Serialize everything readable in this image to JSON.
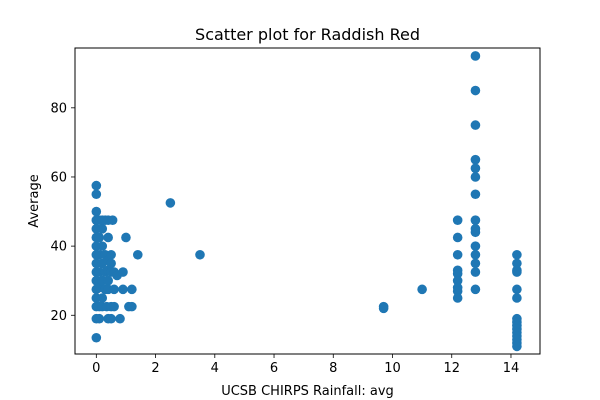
{
  "chart_data": {
    "type": "scatter",
    "title": "Scatter plot for Raddish Red",
    "xlabel": "UCSB CHIRPS Rainfall: avg",
    "ylabel": "Average",
    "xlim": [
      -0.72,
      14.98
    ],
    "ylim": [
      8.8,
      97.3
    ],
    "xticks": [
      0,
      2,
      4,
      6,
      8,
      10,
      12,
      14
    ],
    "yticks": [
      20,
      40,
      60,
      80
    ],
    "grid": false,
    "legend": "none",
    "marker_color": "#1f77b4",
    "series": [
      {
        "points": [
          {
            "x": 0,
            "y": 57.5
          },
          {
            "x": 0,
            "y": 55
          },
          {
            "x": 0,
            "y": 50
          },
          {
            "x": 0,
            "y": 47.5
          },
          {
            "x": 0,
            "y": 45
          },
          {
            "x": 0,
            "y": 42.5
          },
          {
            "x": 0,
            "y": 40
          },
          {
            "x": 0,
            "y": 37.5
          },
          {
            "x": 0,
            "y": 35
          },
          {
            "x": 0,
            "y": 32.5
          },
          {
            "x": 0,
            "y": 30
          },
          {
            "x": 0,
            "y": 27.5
          },
          {
            "x": 0,
            "y": 25
          },
          {
            "x": 0,
            "y": 22.5
          },
          {
            "x": 0,
            "y": 19
          },
          {
            "x": 0,
            "y": 13.5
          },
          {
            "x": 0.1,
            "y": 47.5
          },
          {
            "x": 0.1,
            "y": 42.5
          },
          {
            "x": 0.1,
            "y": 37.5
          },
          {
            "x": 0.1,
            "y": 32.5
          },
          {
            "x": 0.1,
            "y": 28
          },
          {
            "x": 0.1,
            "y": 22.5
          },
          {
            "x": 0.1,
            "y": 19
          },
          {
            "x": 0.2,
            "y": 47.5
          },
          {
            "x": 0.2,
            "y": 45
          },
          {
            "x": 0.2,
            "y": 40
          },
          {
            "x": 0.2,
            "y": 35
          },
          {
            "x": 0.2,
            "y": 30
          },
          {
            "x": 0.2,
            "y": 25
          },
          {
            "x": 0.2,
            "y": 22.5
          },
          {
            "x": 0.3,
            "y": 47.5
          },
          {
            "x": 0.3,
            "y": 37.5
          },
          {
            "x": 0.3,
            "y": 32.5
          },
          {
            "x": 0.3,
            "y": 27.5
          },
          {
            "x": 0.35,
            "y": 22.5
          },
          {
            "x": 0.4,
            "y": 47.5
          },
          {
            "x": 0.4,
            "y": 42.5
          },
          {
            "x": 0.4,
            "y": 36
          },
          {
            "x": 0.4,
            "y": 33
          },
          {
            "x": 0.4,
            "y": 30
          },
          {
            "x": 0.4,
            "y": 27.5
          },
          {
            "x": 0.4,
            "y": 19
          },
          {
            "x": 0.5,
            "y": 37.5
          },
          {
            "x": 0.5,
            "y": 35
          },
          {
            "x": 0.5,
            "y": 32.5
          },
          {
            "x": 0.5,
            "y": 22.5
          },
          {
            "x": 0.5,
            "y": 19
          },
          {
            "x": 0.55,
            "y": 47.5
          },
          {
            "x": 0.6,
            "y": 32.5
          },
          {
            "x": 0.6,
            "y": 27.5
          },
          {
            "x": 0.6,
            "y": 22.5
          },
          {
            "x": 0.7,
            "y": 31.5
          },
          {
            "x": 0.8,
            "y": 19
          },
          {
            "x": 0.9,
            "y": 32.5
          },
          {
            "x": 0.9,
            "y": 27.5
          },
          {
            "x": 1.0,
            "y": 42.5
          },
          {
            "x": 1.1,
            "y": 22.5
          },
          {
            "x": 1.2,
            "y": 27.5
          },
          {
            "x": 1.2,
            "y": 22.5
          },
          {
            "x": 1.4,
            "y": 37.5
          },
          {
            "x": 2.5,
            "y": 52.5
          },
          {
            "x": 3.5,
            "y": 37.5
          },
          {
            "x": 9.7,
            "y": 22.5
          },
          {
            "x": 9.7,
            "y": 22
          },
          {
            "x": 11.0,
            "y": 27.5
          },
          {
            "x": 12.2,
            "y": 47.5
          },
          {
            "x": 12.2,
            "y": 42.5
          },
          {
            "x": 12.2,
            "y": 37.5
          },
          {
            "x": 12.2,
            "y": 33
          },
          {
            "x": 12.2,
            "y": 32
          },
          {
            "x": 12.2,
            "y": 30
          },
          {
            "x": 12.2,
            "y": 28
          },
          {
            "x": 12.2,
            "y": 27
          },
          {
            "x": 12.2,
            "y": 25
          },
          {
            "x": 12.8,
            "y": 95
          },
          {
            "x": 12.8,
            "y": 85
          },
          {
            "x": 12.8,
            "y": 75
          },
          {
            "x": 12.8,
            "y": 65
          },
          {
            "x": 12.8,
            "y": 62.5
          },
          {
            "x": 12.8,
            "y": 60
          },
          {
            "x": 12.8,
            "y": 55
          },
          {
            "x": 12.8,
            "y": 47.5
          },
          {
            "x": 12.8,
            "y": 45
          },
          {
            "x": 12.8,
            "y": 44
          },
          {
            "x": 12.8,
            "y": 40
          },
          {
            "x": 12.8,
            "y": 37.5
          },
          {
            "x": 12.8,
            "y": 35
          },
          {
            "x": 12.8,
            "y": 32.5
          },
          {
            "x": 12.8,
            "y": 27.5
          },
          {
            "x": 14.2,
            "y": 37.5
          },
          {
            "x": 14.2,
            "y": 35
          },
          {
            "x": 14.2,
            "y": 33
          },
          {
            "x": 14.2,
            "y": 32.5
          },
          {
            "x": 14.2,
            "y": 27.5
          },
          {
            "x": 14.2,
            "y": 25
          },
          {
            "x": 14.2,
            "y": 19
          },
          {
            "x": 14.2,
            "y": 18
          },
          {
            "x": 14.2,
            "y": 17
          },
          {
            "x": 14.2,
            "y": 16
          },
          {
            "x": 14.2,
            "y": 15
          },
          {
            "x": 14.2,
            "y": 14
          },
          {
            "x": 14.2,
            "y": 13
          },
          {
            "x": 14.2,
            "y": 12
          },
          {
            "x": 14.2,
            "y": 11
          }
        ]
      }
    ]
  }
}
